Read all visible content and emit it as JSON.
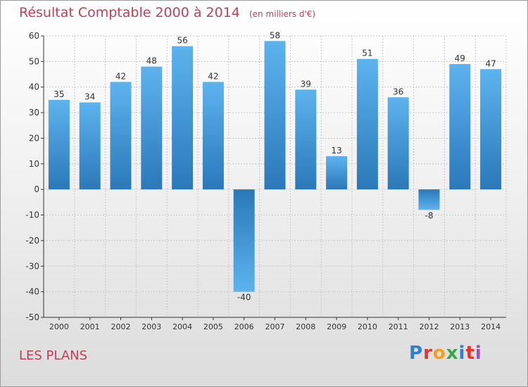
{
  "header": {
    "title": "Résultat Comptable 2000 à 2014",
    "unit": "(en milliers d'€)"
  },
  "footer": {
    "commune": "LES PLANS",
    "logo_text": "Proxiti",
    "logo_colors": [
      "#2f7fd0",
      "#e3342f",
      "#f3a020",
      "#3aa64a",
      "#2f7fd0",
      "#e3342f",
      "#9a4fc0"
    ]
  },
  "colors": {
    "title": "#c0405a",
    "bar_light": "#5db3ee",
    "bar_dark": "#2b78b8",
    "grid": "#c8c8c8",
    "axis": "#333333"
  },
  "chart_data": {
    "type": "bar",
    "title": "Résultat Comptable 2000 à 2014",
    "subtitle": "(en milliers d'€)",
    "categories": [
      "2000",
      "2001",
      "2002",
      "2003",
      "2004",
      "2005",
      "2006",
      "2007",
      "2008",
      "2009",
      "2010",
      "2011",
      "2012",
      "2013",
      "2014"
    ],
    "values": [
      35,
      34,
      42,
      48,
      56,
      42,
      -40,
      58,
      39,
      13,
      51,
      36,
      -8,
      49,
      47
    ],
    "ylim": [
      -50,
      60
    ],
    "yticks": [
      60,
      50,
      40,
      30,
      20,
      10,
      0,
      -10,
      -20,
      -30,
      -40,
      -50
    ],
    "grid": true,
    "xlabel": "",
    "ylabel": ""
  }
}
